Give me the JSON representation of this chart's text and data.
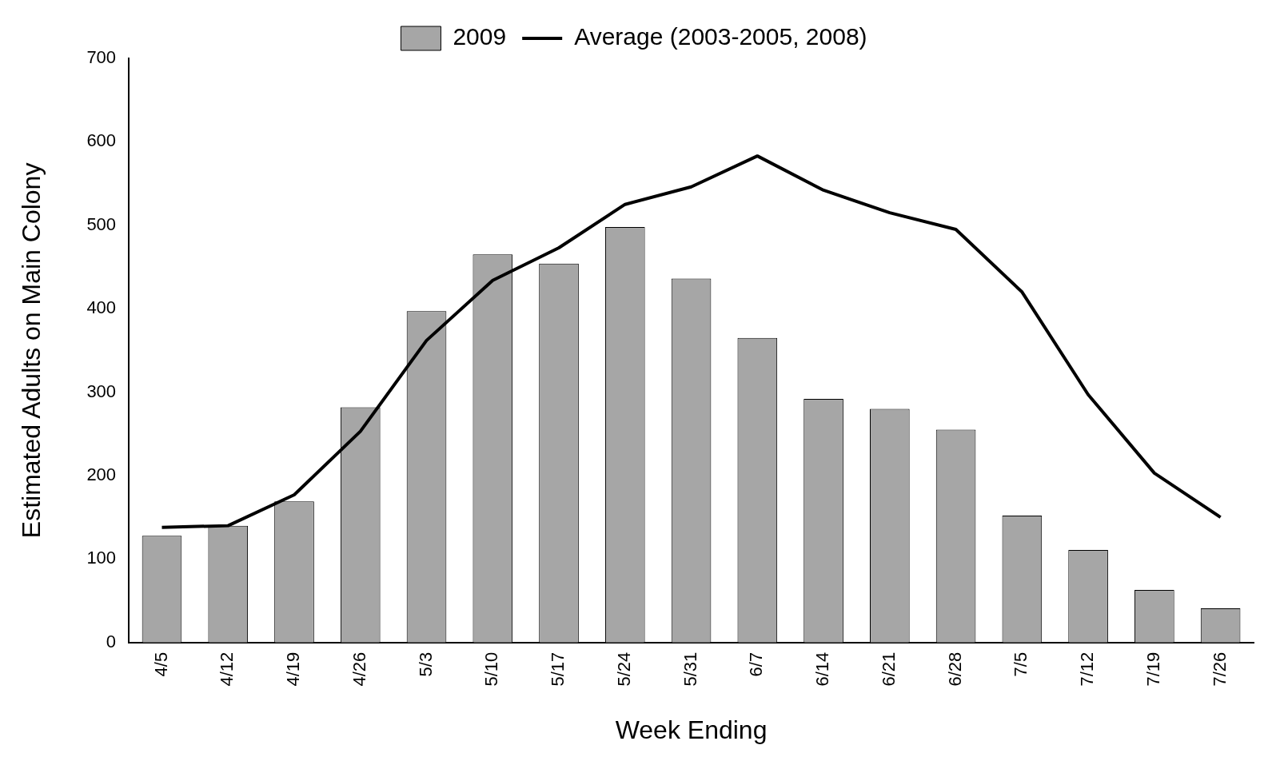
{
  "chart_data": {
    "type": "bar",
    "xlabel": "Week Ending",
    "ylabel": "Estimated Adults on Main Colony",
    "categories": [
      "4/5",
      "4/12",
      "4/19",
      "4/26",
      "5/3",
      "5/10",
      "5/17",
      "5/24",
      "5/31",
      "6/7",
      "6/14",
      "6/21",
      "6/28",
      "7/5",
      "7/12",
      "7/19",
      "7/26"
    ],
    "series": [
      {
        "name": "2009",
        "color": "#a6a6a6",
        "values": [
          128,
          140,
          169,
          282,
          397,
          465,
          454,
          498,
          436,
          365,
          292,
          280,
          255,
          152,
          111,
          63,
          41
        ]
      },
      {
        "name": "Average (2003-2005, 2008)",
        "type": "line",
        "color": "#000000",
        "values": [
          138,
          140,
          177,
          253,
          362,
          434,
          473,
          525,
          546,
          583,
          542,
          515,
          495,
          420,
          297,
          203,
          150
        ]
      }
    ],
    "ylim": [
      0,
      700
    ],
    "yticks": [
      0,
      100,
      200,
      300,
      400,
      500,
      600,
      700
    ],
    "grid": false,
    "legend": "top",
    "marker": "none",
    "line_style": "solid"
  }
}
